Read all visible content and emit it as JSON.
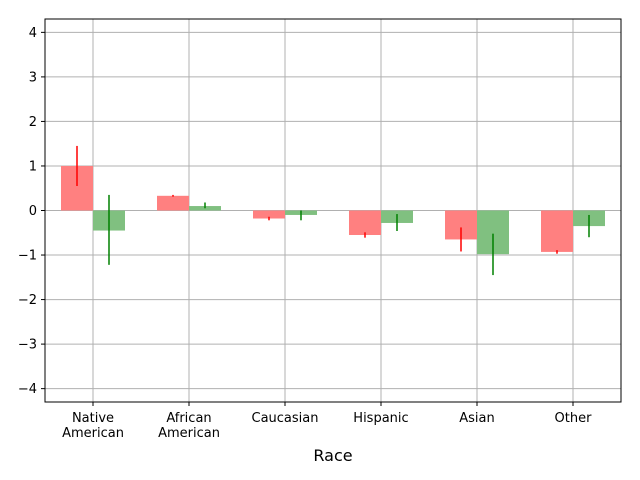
{
  "chart_data": {
    "type": "bar",
    "xlabel": "Race",
    "ylabel": "",
    "title": "",
    "ylim": [
      -4.3,
      4.3
    ],
    "yticks": [
      -4,
      -3,
      -2,
      -1,
      0,
      1,
      2,
      3,
      4
    ],
    "grid": true,
    "categories": [
      [
        "Native",
        "American"
      ],
      [
        "African",
        "American"
      ],
      [
        "Caucasian"
      ],
      [
        "Hispanic"
      ],
      [
        "Asian"
      ],
      [
        "Other"
      ]
    ],
    "series": [
      {
        "color": "#ff8080",
        "error_color": "#ff0000",
        "values": [
          1.0,
          0.33,
          -0.18,
          -0.55,
          -0.65,
          -0.93
        ],
        "error_low": [
          0.55,
          0.31,
          -0.22,
          -0.61,
          -0.92,
          -0.97
        ],
        "error_high": [
          1.45,
          0.35,
          -0.14,
          -0.49,
          -0.38,
          -0.89
        ]
      },
      {
        "color": "#80c080",
        "error_color": "#008000",
        "values": [
          -0.45,
          0.1,
          -0.1,
          -0.28,
          -0.98,
          -0.35
        ],
        "error_low": [
          -1.22,
          0.05,
          -0.22,
          -0.46,
          -1.45,
          -0.6
        ],
        "error_high": [
          0.35,
          0.18,
          0.0,
          -0.08,
          -0.52,
          -0.1
        ]
      }
    ]
  }
}
